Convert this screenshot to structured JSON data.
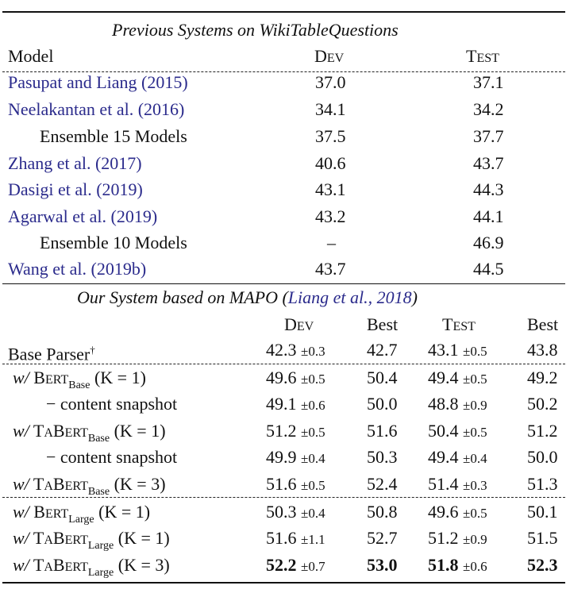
{
  "prev": {
    "title": "Previous Systems on WikiTableQuestions",
    "col_model": "Model",
    "dev_head": {
      "first": "D",
      "rest": "EV"
    },
    "test_head": {
      "first": "T",
      "rest": "EST"
    },
    "rows": [
      {
        "model": "Pasupat and Liang (2015)",
        "dev": "37.0",
        "test": "37.1"
      },
      {
        "model": "Neelakantan et al. (2016)",
        "dev": "34.1",
        "test": "34.2"
      },
      {
        "model": "Ensemble 15 Models",
        "dev": "37.5",
        "test": "37.7"
      },
      {
        "model": "Zhang et al. (2017)",
        "dev": "40.6",
        "test": "43.7"
      },
      {
        "model": "Dasigi et al. (2019)",
        "dev": "43.1",
        "test": "44.3"
      },
      {
        "model": "Agarwal et al. (2019)",
        "dev": "43.2",
        "test": "44.1"
      },
      {
        "model": "Ensemble 10 Models",
        "dev": "–",
        "test": "46.9"
      },
      {
        "model": "Wang et al. (2019b)",
        "dev": "43.7",
        "test": "44.5"
      }
    ]
  },
  "ours": {
    "title_pre": "Our System based on MAPO (",
    "title_cite": "Liang et al., 2018",
    "title_post": ")",
    "dev_head": {
      "first": "D",
      "rest": "EV"
    },
    "best_head": "Best",
    "test_head": {
      "first": "T",
      "rest": "EST"
    },
    "best2_head": "Best",
    "base_parser": "Base Parser",
    "dagger": "†",
    "w": "w/",
    "bert": {
      "first": "B",
      "rest": "ERT"
    },
    "tabert": {
      "first1": "T",
      "mid1": "A",
      "first2": "B",
      "rest": "ERT"
    },
    "size_base": "Base",
    "size_large": "Large",
    "k1": "(K = 1)",
    "k3": "(K = 3)",
    "content_snapshot": "− content snapshot",
    "rows": [
      {
        "dev": "42.3",
        "dev_pm": "±0.3",
        "best": "42.7",
        "test": "43.1",
        "test_pm": "±0.5",
        "best2": "43.8"
      },
      {
        "dev": "49.6",
        "dev_pm": "±0.5",
        "best": "50.4",
        "test": "49.4",
        "test_pm": "±0.5",
        "best2": "49.2"
      },
      {
        "dev": "49.1",
        "dev_pm": "±0.6",
        "best": "50.0",
        "test": "48.8",
        "test_pm": "±0.9",
        "best2": "50.2"
      },
      {
        "dev": "51.2",
        "dev_pm": "±0.5",
        "best": "51.6",
        "test": "50.4",
        "test_pm": "±0.5",
        "best2": "51.2"
      },
      {
        "dev": "49.9",
        "dev_pm": "±0.4",
        "best": "50.3",
        "test": "49.4",
        "test_pm": "±0.4",
        "best2": "50.0"
      },
      {
        "dev": "51.6",
        "dev_pm": "±0.5",
        "best": "52.4",
        "test": "51.4",
        "test_pm": "±0.3",
        "best2": "51.3"
      },
      {
        "dev": "50.3",
        "dev_pm": "±0.4",
        "best": "50.8",
        "test": "49.6",
        "test_pm": "±0.5",
        "best2": "50.1"
      },
      {
        "dev": "51.6",
        "dev_pm": "±1.1",
        "best": "52.7",
        "test": "51.2",
        "test_pm": "±0.9",
        "best2": "51.5"
      },
      {
        "dev": "52.2",
        "dev_pm": "±0.7",
        "best": "53.0",
        "test": "51.8",
        "test_pm": "±0.6",
        "best2": "52.3"
      }
    ]
  }
}
